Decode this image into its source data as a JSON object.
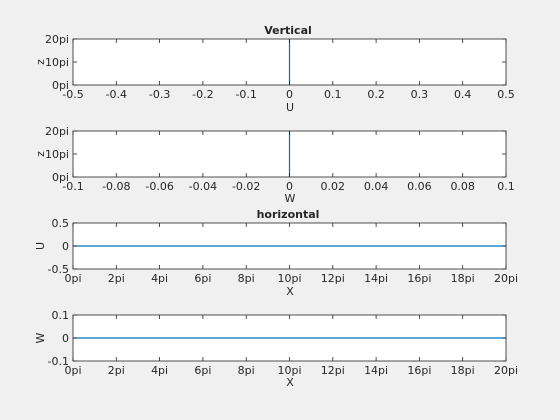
{
  "figure": {
    "background": "#f0f0f0",
    "line_color": "#0072bd"
  },
  "chart_data": [
    {
      "type": "line",
      "title": "Vertical",
      "xlabel": "U",
      "ylabel": "z",
      "xlim": [
        -0.5,
        0.5
      ],
      "ylim": [
        0,
        20
      ],
      "x_ticks": [
        -0.5,
        -0.4,
        -0.3,
        -0.2,
        -0.1,
        0,
        0.1,
        0.2,
        0.3,
        0.4,
        0.5
      ],
      "x_tick_labels": [
        "-0.5",
        "-0.4",
        "-0.3",
        "-0.2",
        "-0.1",
        "0",
        "0.1",
        "0.2",
        "0.3",
        "0.4",
        "0.5"
      ],
      "y_ticks": [
        0,
        10,
        20
      ],
      "y_tick_labels": [
        "0pi",
        "10pi",
        "20pi"
      ],
      "grid": false,
      "series": [
        {
          "x": [
            0,
            0
          ],
          "y": [
            0,
            20
          ]
        }
      ]
    },
    {
      "type": "line",
      "title": "",
      "xlabel": "W",
      "ylabel": "z",
      "xlim": [
        -0.1,
        0.1
      ],
      "ylim": [
        0,
        20
      ],
      "x_ticks": [
        -0.1,
        -0.08,
        -0.06,
        -0.04,
        -0.02,
        0,
        0.02,
        0.04,
        0.06,
        0.08,
        0.1
      ],
      "x_tick_labels": [
        "-0.1",
        "-0.08",
        "-0.06",
        "-0.04",
        "-0.02",
        "0",
        "0.02",
        "0.04",
        "0.06",
        "0.08",
        "0.1"
      ],
      "y_ticks": [
        0,
        10,
        20
      ],
      "y_tick_labels": [
        "0pi",
        "10pi",
        "20pi"
      ],
      "grid": false,
      "series": [
        {
          "x": [
            0,
            0
          ],
          "y": [
            0,
            20
          ]
        }
      ]
    },
    {
      "type": "line",
      "title": "horizontal",
      "xlabel": "X",
      "ylabel": "U",
      "xlim": [
        0,
        20
      ],
      "ylim": [
        -0.5,
        0.5
      ],
      "x_ticks": [
        0,
        2,
        4,
        6,
        8,
        10,
        12,
        14,
        16,
        18,
        20
      ],
      "x_tick_labels": [
        "0pi",
        "2pi",
        "4pi",
        "6pi",
        "8pi",
        "10pi",
        "12pi",
        "14pi",
        "16pi",
        "18pi",
        "20pi"
      ],
      "y_ticks": [
        -0.5,
        0,
        0.5
      ],
      "y_tick_labels": [
        "-0.5",
        "0",
        "0.5"
      ],
      "grid": false,
      "series": [
        {
          "x": [
            0,
            20
          ],
          "y": [
            0,
            0
          ]
        }
      ]
    },
    {
      "type": "line",
      "title": "",
      "xlabel": "X",
      "ylabel": "W",
      "xlim": [
        0,
        20
      ],
      "ylim": [
        -0.1,
        0.1
      ],
      "x_ticks": [
        0,
        2,
        4,
        6,
        8,
        10,
        12,
        14,
        16,
        18,
        20
      ],
      "x_tick_labels": [
        "0pi",
        "2pi",
        "4pi",
        "6pi",
        "8pi",
        "10pi",
        "12pi",
        "14pi",
        "16pi",
        "18pi",
        "20pi"
      ],
      "y_ticks": [
        -0.1,
        0,
        0.1
      ],
      "y_tick_labels": [
        "-0.1",
        "0",
        "0.1"
      ],
      "grid": false,
      "series": [
        {
          "x": [
            0,
            20
          ],
          "y": [
            0,
            0
          ]
        }
      ]
    }
  ]
}
